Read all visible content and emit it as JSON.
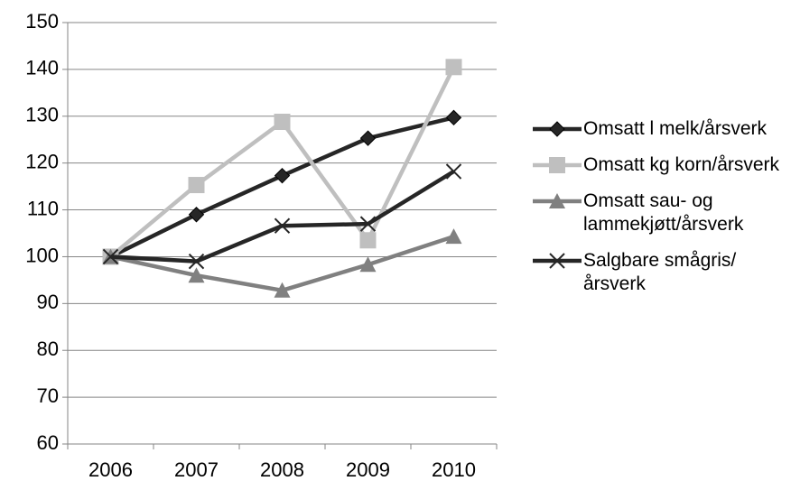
{
  "chart_data": {
    "type": "line",
    "categories": [
      "2006",
      "2007",
      "2008",
      "2009",
      "2010"
    ],
    "series": [
      {
        "name": "Omsatt l melk/årsverk",
        "color": "#262626",
        "marker": "diamond",
        "values": [
          100,
          109,
          117.3,
          125.3,
          129.7
        ]
      },
      {
        "name": "Omsatt kg korn/årsverk",
        "color": "#bfbfbf",
        "marker": "square",
        "values": [
          100,
          115.3,
          128.8,
          103.5,
          140.5
        ]
      },
      {
        "name": "Omsatt sau- og lammekjøtt/årsverk",
        "color": "#808080",
        "marker": "triangle",
        "values": [
          100,
          96,
          92.8,
          98.3,
          104.3
        ]
      },
      {
        "name": "Salgbare smågris/årsverk",
        "color": "#262626",
        "marker": "x",
        "values": [
          100,
          99,
          106.6,
          107,
          118.2
        ]
      }
    ],
    "ylim": [
      60,
      150
    ],
    "yticks": [
      60,
      70,
      80,
      90,
      100,
      110,
      120,
      130,
      140,
      150
    ],
    "grid": true,
    "legend": "right"
  }
}
